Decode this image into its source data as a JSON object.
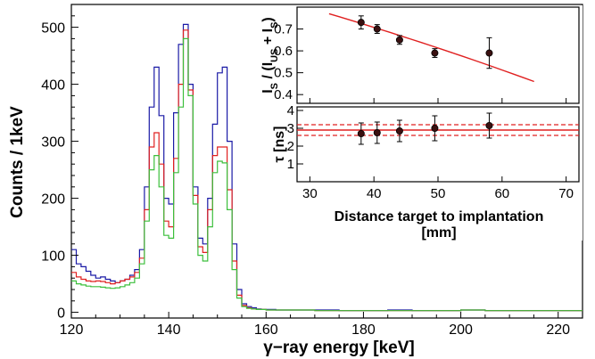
{
  "chart_data": [
    {
      "type": "line",
      "xlabel": "γ−ray energy [keV]",
      "ylabel": "Counts / 1keV",
      "xlim": [
        120,
        225
      ],
      "ylim": [
        -10,
        540
      ],
      "xticks": [
        "120",
        "140",
        "160",
        "180",
        "200",
        "220"
      ],
      "xtick_values": [
        120,
        140,
        160,
        180,
        200,
        220
      ],
      "yticks": [
        "0",
        "100",
        "200",
        "300",
        "400",
        "500"
      ],
      "ytick_values": [
        0,
        100,
        200,
        300,
        400,
        500
      ],
      "grid": false,
      "x": [
        120,
        121,
        122,
        123,
        124,
        125,
        126,
        127,
        128,
        129,
        130,
        131,
        132,
        133,
        134,
        135,
        136,
        137,
        138,
        139,
        140,
        141,
        142,
        143,
        144,
        145,
        146,
        147,
        148,
        149,
        150,
        151,
        152,
        153,
        154,
        155,
        156,
        157,
        158,
        159,
        160,
        162,
        165,
        170,
        175,
        180,
        185,
        190,
        195,
        200,
        205,
        210,
        215,
        220,
        225
      ],
      "series": [
        {
          "color": "#1a1aa6",
          "values": [
            110,
            85,
            80,
            72,
            65,
            60,
            62,
            58,
            55,
            52,
            55,
            58,
            65,
            75,
            110,
            220,
            360,
            430,
            345,
            200,
            190,
            350,
            470,
            505,
            400,
            220,
            130,
            120,
            200,
            330,
            420,
            430,
            300,
            120,
            40,
            15,
            10,
            8,
            6,
            5,
            5,
            4,
            4,
            4,
            3,
            3,
            4,
            3,
            3,
            4,
            3,
            3,
            3,
            3,
            3
          ]
        },
        {
          "color": "#e02020",
          "values": [
            70,
            62,
            58,
            55,
            54,
            55,
            54,
            52,
            50,
            52,
            55,
            58,
            62,
            70,
            95,
            180,
            290,
            315,
            260,
            160,
            150,
            270,
            400,
            495,
            390,
            205,
            115,
            105,
            180,
            275,
            290,
            290,
            215,
            90,
            30,
            12,
            8,
            6,
            5,
            5,
            4,
            4,
            4,
            3,
            3,
            3,
            3,
            3,
            3,
            4,
            3,
            3,
            3,
            3,
            3
          ]
        },
        {
          "color": "#3cbf3c",
          "values": [
            55,
            50,
            48,
            46,
            45,
            45,
            44,
            43,
            42,
            43,
            45,
            48,
            52,
            60,
            85,
            160,
            250,
            275,
            220,
            135,
            130,
            245,
            360,
            480,
            380,
            190,
            100,
            90,
            150,
            245,
            265,
            262,
            180,
            75,
            25,
            10,
            7,
            6,
            5,
            5,
            4,
            4,
            4,
            3,
            3,
            3,
            3,
            3,
            3,
            4,
            3,
            3,
            3,
            3,
            3
          ]
        }
      ]
    },
    {
      "type": "scatter",
      "xlabel": "",
      "ylabel": "I_S / (I_US + I_S)",
      "ylabel_parts": {
        "i1": "I",
        "s1": "S",
        "mid": " / (I",
        "s2": "US",
        "plus": " + I",
        "s3": "S",
        "close": ")"
      },
      "xlim": [
        28,
        72
      ],
      "ylim": [
        0.36,
        0.8
      ],
      "yticks": [
        "0.4",
        "0.5",
        "0.6",
        "0.7"
      ],
      "ytick_values": [
        0.4,
        0.5,
        0.6,
        0.7
      ],
      "x": [
        38,
        40.5,
        44,
        49.5,
        58
      ],
      "y": [
        0.73,
        0.7,
        0.65,
        0.59,
        0.59
      ],
      "yerr": [
        0.03,
        0.02,
        0.02,
        0.02,
        0.07
      ],
      "fit_x": [
        33,
        65
      ],
      "fit_y": [
        0.77,
        0.46
      ],
      "marker_color": "#000000",
      "fit_color": "#e02020"
    },
    {
      "type": "scatter",
      "xlabel": "Distance target to implantation [mm]",
      "xlabel_line1": "Distance target to implantation",
      "xlabel_line2": "[mm]",
      "ylabel": "τ [ns]",
      "xlim": [
        28,
        72
      ],
      "ylim": [
        0,
        4.2
      ],
      "xticks": [
        "30",
        "40",
        "50",
        "60",
        "70"
      ],
      "xtick_values": [
        30,
        40,
        50,
        60,
        70
      ],
      "yticks": [
        "1",
        "2",
        "3",
        "4"
      ],
      "ytick_values": [
        1,
        2,
        3,
        4
      ],
      "x": [
        38,
        40.5,
        44,
        49.5,
        58
      ],
      "y": [
        2.7,
        2.75,
        2.85,
        3.0,
        3.15
      ],
      "yerr": [
        0.6,
        0.6,
        0.6,
        0.7,
        0.7
      ],
      "mean_line": 2.9,
      "band": [
        2.6,
        3.2
      ],
      "marker_color": "#000000",
      "line_color": "#e02020"
    }
  ]
}
